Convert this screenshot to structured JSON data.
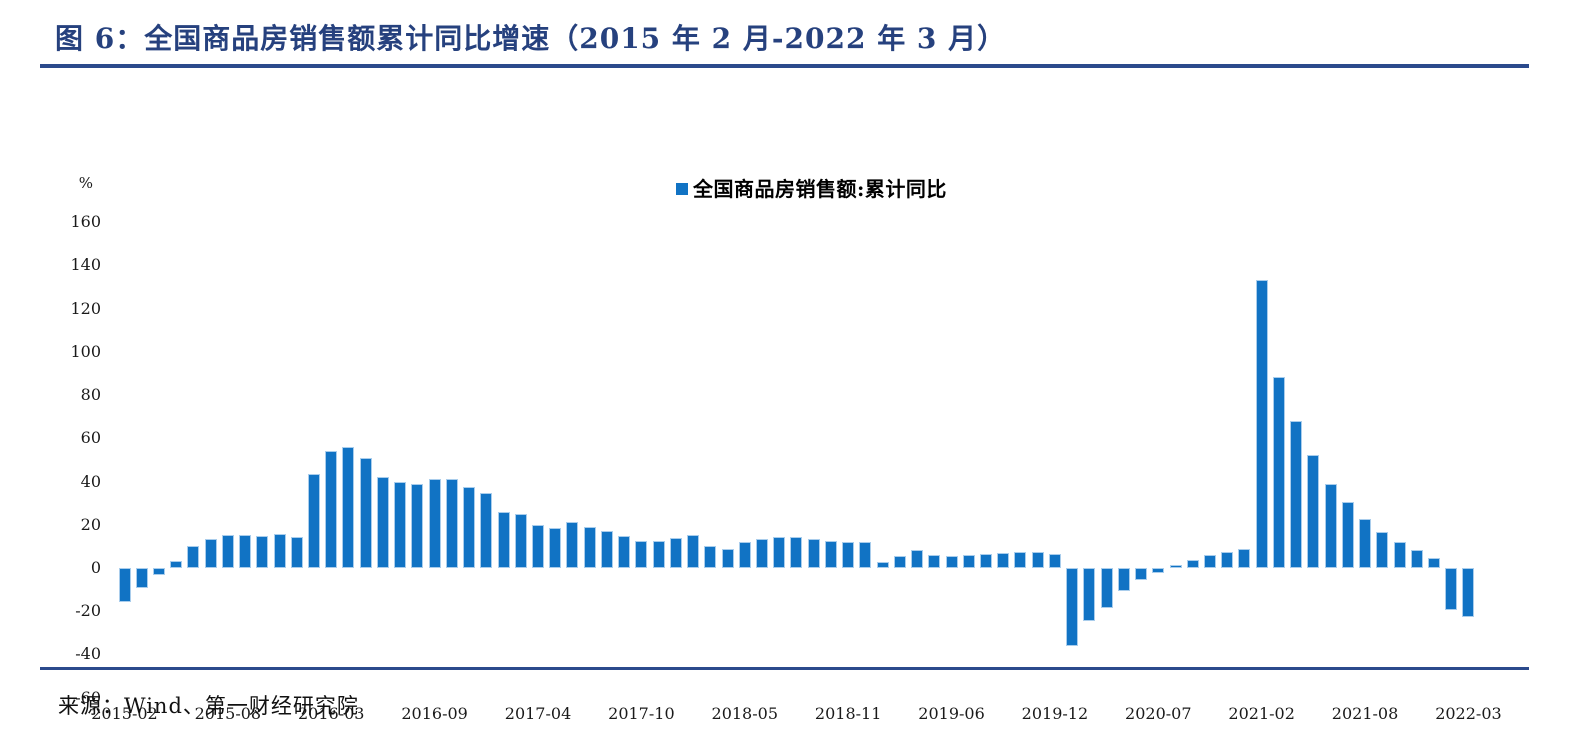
{
  "title": "图 6：全国商品房销售额累计同比增速（2015 年 2 月-2022 年 3 月）",
  "source": "来源：Wind、第一财经研究院",
  "legend": {
    "label": "全国商品房销售额:累计同比",
    "marker": "blue-square"
  },
  "colors": {
    "bar": "#1173C4",
    "title": "#26417E",
    "rule": "#2B4A8C",
    "text": "#1a1a1a"
  },
  "y_axis": {
    "unit": "%",
    "ticks": [
      160,
      140,
      120,
      100,
      80,
      60,
      40,
      20,
      0,
      -20,
      -40,
      -60
    ]
  },
  "x_axis": {
    "tick_labels": [
      "2015-02",
      "2015-08",
      "2016-03",
      "2016-09",
      "2017-04",
      "2017-10",
      "2018-05",
      "2018-11",
      "2019-06",
      "2019-12",
      "2020-07",
      "2021-02",
      "2021-08",
      "2022-03"
    ],
    "tick_indices": [
      0,
      6,
      12,
      18,
      24,
      30,
      36,
      42,
      48,
      54,
      60,
      66,
      72,
      78
    ]
  },
  "chart_data": {
    "type": "bar",
    "title": "全国商品房销售额累计同比增速（2015年2月-2022年3月）",
    "series_name": "全国商品房销售额:累计同比",
    "ylabel": "%",
    "ylim": [
      -60,
      160
    ],
    "grid": false,
    "legend_position": "top-center",
    "categories": [
      "2015-02",
      "2015-03",
      "2015-04",
      "2015-05",
      "2015-06",
      "2015-07",
      "2015-08",
      "2015-09",
      "2015-10",
      "2015-11",
      "2015-12",
      "2016-02",
      "2016-03",
      "2016-04",
      "2016-05",
      "2016-06",
      "2016-07",
      "2016-08",
      "2016-09",
      "2016-10",
      "2016-11",
      "2016-12",
      "2017-02",
      "2017-03",
      "2017-04",
      "2017-05",
      "2017-06",
      "2017-07",
      "2017-08",
      "2017-09",
      "2017-10",
      "2017-11",
      "2017-12",
      "2018-02",
      "2018-03",
      "2018-04",
      "2018-05",
      "2018-06",
      "2018-07",
      "2018-08",
      "2018-09",
      "2018-10",
      "2018-11",
      "2018-12",
      "2019-02",
      "2019-03",
      "2019-04",
      "2019-05",
      "2019-06",
      "2019-07",
      "2019-08",
      "2019-09",
      "2019-10",
      "2019-11",
      "2019-12",
      "2020-02",
      "2020-03",
      "2020-04",
      "2020-05",
      "2020-06",
      "2020-07",
      "2020-08",
      "2020-09",
      "2020-10",
      "2020-11",
      "2020-12",
      "2021-02",
      "2021-03",
      "2021-04",
      "2021-05",
      "2021-06",
      "2021-07",
      "2021-08",
      "2021-09",
      "2021-10",
      "2021-11",
      "2021-12",
      "2022-02",
      "2022-03"
    ],
    "values": [
      -15.8,
      -9.3,
      -3.1,
      3.1,
      10.0,
      13.4,
      15.3,
      15.3,
      14.9,
      15.6,
      14.4,
      43.6,
      54.1,
      55.9,
      50.7,
      42.1,
      39.8,
      38.7,
      41.3,
      41.2,
      37.5,
      34.8,
      26.0,
      25.1,
      20.1,
      18.6,
      21.5,
      18.9,
      17.2,
      14.6,
      12.6,
      12.7,
      13.7,
      15.3,
      10.4,
      9.0,
      11.8,
      13.2,
      14.4,
      14.5,
      13.3,
      12.5,
      12.1,
      12.2,
      2.8,
      5.6,
      8.1,
      6.1,
      5.6,
      6.2,
      6.7,
      7.1,
      7.3,
      7.3,
      6.5,
      -35.9,
      -24.7,
      -18.6,
      -10.6,
      -5.4,
      -2.1,
      1.6,
      3.7,
      5.8,
      7.2,
      8.7,
      133.4,
      88.5,
      68.2,
      52.4,
      38.9,
      30.7,
      22.8,
      16.6,
      11.8,
      8.5,
      4.8,
      -19.3,
      -22.7
    ]
  }
}
